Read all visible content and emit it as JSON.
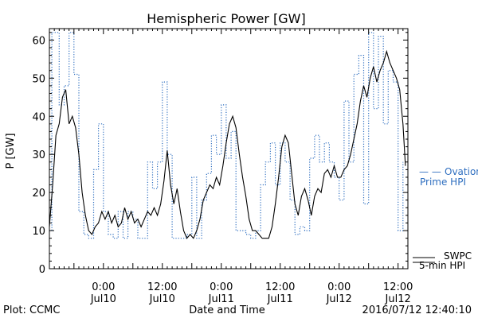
{
  "chart_data": {
    "type": "line",
    "title": "Hemispheric Power [GW]",
    "xlabel": "Date and Time",
    "ylabel": "P [GW]",
    "ylim": [
      0,
      63
    ],
    "yticks": [
      0,
      10,
      20,
      30,
      40,
      50,
      60
    ],
    "xlim": [
      "2016-07-09 13:00",
      "2016-07-12 14:00"
    ],
    "xticks": [
      {
        "at": "2016-07-10 00:00",
        "time": "0:00",
        "date": "Jul10"
      },
      {
        "at": "2016-07-10 12:00",
        "time": "12:00",
        "date": "Jul10"
      },
      {
        "at": "2016-07-11 00:00",
        "time": "0:00",
        "date": "Jul11"
      },
      {
        "at": "2016-07-11 12:00",
        "time": "12:00",
        "date": "Jul11"
      },
      {
        "at": "2016-07-12 00:00",
        "time": "0:00",
        "date": "Jul12"
      },
      {
        "at": "2016-07-12 12:00",
        "time": "12:00",
        "date": "Jul12"
      }
    ],
    "series": [
      {
        "name": "Ovation Prime HPI",
        "legend_marker": "— —",
        "legend_lines": [
          "Ovation",
          "Prime HPI"
        ],
        "color": "#2f6fc0",
        "style": "dotted-step",
        "points": [
          [
            "2016-07-09 13:00",
            10
          ],
          [
            "2016-07-09 13:30",
            62
          ],
          [
            "2016-07-09 15:00",
            43
          ],
          [
            "2016-07-09 16:00",
            48
          ],
          [
            "2016-07-09 17:00",
            62
          ],
          [
            "2016-07-09 18:00",
            51
          ],
          [
            "2016-07-09 19:00",
            15
          ],
          [
            "2016-07-09 20:00",
            9
          ],
          [
            "2016-07-09 21:00",
            8
          ],
          [
            "2016-07-09 22:00",
            26
          ],
          [
            "2016-07-09 23:00",
            38
          ],
          [
            "2016-07-10 00:00",
            15
          ],
          [
            "2016-07-10 01:00",
            9
          ],
          [
            "2016-07-10 02:00",
            8
          ],
          [
            "2016-07-10 03:00",
            15
          ],
          [
            "2016-07-10 04:00",
            8
          ],
          [
            "2016-07-10 05:00",
            15
          ],
          [
            "2016-07-10 06:00",
            13
          ],
          [
            "2016-07-10 07:00",
            8
          ],
          [
            "2016-07-10 09:00",
            28
          ],
          [
            "2016-07-10 10:00",
            21
          ],
          [
            "2016-07-10 11:00",
            28
          ],
          [
            "2016-07-10 12:00",
            49
          ],
          [
            "2016-07-10 13:00",
            30
          ],
          [
            "2016-07-10 14:00",
            8
          ],
          [
            "2016-07-10 17:00",
            9
          ],
          [
            "2016-07-10 18:00",
            24
          ],
          [
            "2016-07-10 19:00",
            8
          ],
          [
            "2016-07-10 20:00",
            18
          ],
          [
            "2016-07-10 21:00",
            25
          ],
          [
            "2016-07-10 22:00",
            35
          ],
          [
            "2016-07-10 23:00",
            30
          ],
          [
            "2016-07-11 00:00",
            43
          ],
          [
            "2016-07-11 01:00",
            29
          ],
          [
            "2016-07-11 02:00",
            36
          ],
          [
            "2016-07-11 03:00",
            10
          ],
          [
            "2016-07-11 04:00",
            10
          ],
          [
            "2016-07-11 05:00",
            9
          ],
          [
            "2016-07-11 06:00",
            8
          ],
          [
            "2016-07-11 07:00",
            10
          ],
          [
            "2016-07-11 08:00",
            22
          ],
          [
            "2016-07-11 09:00",
            28
          ],
          [
            "2016-07-11 10:00",
            33
          ],
          [
            "2016-07-11 11:00",
            22
          ],
          [
            "2016-07-11 12:00",
            33
          ],
          [
            "2016-07-11 13:00",
            28
          ],
          [
            "2016-07-11 14:00",
            18
          ],
          [
            "2016-07-11 15:00",
            9
          ],
          [
            "2016-07-11 16:00",
            11
          ],
          [
            "2016-07-11 17:00",
            10
          ],
          [
            "2016-07-11 18:00",
            29
          ],
          [
            "2016-07-11 19:00",
            35
          ],
          [
            "2016-07-11 20:00",
            28
          ],
          [
            "2016-07-11 21:00",
            33
          ],
          [
            "2016-07-11 22:00",
            28
          ],
          [
            "2016-07-11 23:00",
            24
          ],
          [
            "2016-07-12 00:00",
            18
          ],
          [
            "2016-07-12 01:00",
            44
          ],
          [
            "2016-07-12 02:00",
            28
          ],
          [
            "2016-07-12 03:00",
            51
          ],
          [
            "2016-07-12 04:00",
            56
          ],
          [
            "2016-07-12 05:00",
            17
          ],
          [
            "2016-07-12 06:00",
            62
          ],
          [
            "2016-07-12 07:00",
            42
          ],
          [
            "2016-07-12 08:00",
            61
          ],
          [
            "2016-07-12 09:00",
            38
          ],
          [
            "2016-07-12 10:00",
            52
          ],
          [
            "2016-07-12 11:00",
            49
          ],
          [
            "2016-07-12 12:00",
            10
          ],
          [
            "2016-07-12 13:00",
            28
          ]
        ]
      },
      {
        "name": "SWPC 5-min HPI",
        "legend_lines": [
          "SWPC",
          "5-min HPI"
        ],
        "color": "#000000",
        "style": "solid",
        "points": [
          [
            "2016-07-09 13:00",
            11
          ],
          [
            "2016-07-09 13:40",
            22
          ],
          [
            "2016-07-09 14:20",
            35
          ],
          [
            "2016-07-09 15:00",
            38
          ],
          [
            "2016-07-09 15:40",
            45
          ],
          [
            "2016-07-09 16:20",
            47
          ],
          [
            "2016-07-09 17:00",
            38
          ],
          [
            "2016-07-09 17:40",
            40
          ],
          [
            "2016-07-09 18:20",
            37
          ],
          [
            "2016-07-09 19:00",
            30
          ],
          [
            "2016-07-09 19:40",
            20
          ],
          [
            "2016-07-09 20:20",
            14
          ],
          [
            "2016-07-09 21:00",
            10
          ],
          [
            "2016-07-09 21:40",
            9
          ],
          [
            "2016-07-09 22:20",
            11
          ],
          [
            "2016-07-09 23:00",
            12
          ],
          [
            "2016-07-09 23:40",
            15
          ],
          [
            "2016-07-10 00:20",
            13
          ],
          [
            "2016-07-10 01:00",
            15
          ],
          [
            "2016-07-10 01:40",
            12
          ],
          [
            "2016-07-10 02:20",
            14
          ],
          [
            "2016-07-10 03:00",
            11
          ],
          [
            "2016-07-10 03:40",
            12
          ],
          [
            "2016-07-10 04:20",
            16
          ],
          [
            "2016-07-10 05:00",
            13
          ],
          [
            "2016-07-10 05:40",
            15
          ],
          [
            "2016-07-10 06:20",
            12
          ],
          [
            "2016-07-10 07:00",
            13
          ],
          [
            "2016-07-10 07:40",
            11
          ],
          [
            "2016-07-10 08:20",
            13
          ],
          [
            "2016-07-10 09:00",
            15
          ],
          [
            "2016-07-10 09:40",
            14
          ],
          [
            "2016-07-10 10:20",
            16
          ],
          [
            "2016-07-10 11:00",
            14
          ],
          [
            "2016-07-10 11:40",
            17
          ],
          [
            "2016-07-10 12:20",
            23
          ],
          [
            "2016-07-10 13:00",
            31
          ],
          [
            "2016-07-10 13:40",
            22
          ],
          [
            "2016-07-10 14:20",
            17
          ],
          [
            "2016-07-10 15:00",
            21
          ],
          [
            "2016-07-10 15:40",
            15
          ],
          [
            "2016-07-10 16:20",
            10
          ],
          [
            "2016-07-10 17:00",
            8
          ],
          [
            "2016-07-10 17:40",
            9
          ],
          [
            "2016-07-10 18:20",
            8
          ],
          [
            "2016-07-10 19:00",
            10
          ],
          [
            "2016-07-10 19:40",
            13
          ],
          [
            "2016-07-10 20:20",
            18
          ],
          [
            "2016-07-10 21:00",
            20
          ],
          [
            "2016-07-10 21:40",
            22
          ],
          [
            "2016-07-10 22:20",
            21
          ],
          [
            "2016-07-10 23:00",
            24
          ],
          [
            "2016-07-10 23:40",
            22
          ],
          [
            "2016-07-11 00:20",
            27
          ],
          [
            "2016-07-11 01:00",
            33
          ],
          [
            "2016-07-11 01:40",
            38
          ],
          [
            "2016-07-11 02:20",
            40
          ],
          [
            "2016-07-11 03:00",
            37
          ],
          [
            "2016-07-11 03:40",
            30
          ],
          [
            "2016-07-11 04:20",
            24
          ],
          [
            "2016-07-11 05:00",
            19
          ],
          [
            "2016-07-11 05:40",
            13
          ],
          [
            "2016-07-11 06:20",
            10
          ],
          [
            "2016-07-11 07:00",
            10
          ],
          [
            "2016-07-11 07:40",
            9
          ],
          [
            "2016-07-11 08:20",
            8
          ],
          [
            "2016-07-11 09:00",
            8
          ],
          [
            "2016-07-11 09:40",
            8
          ],
          [
            "2016-07-11 10:20",
            11
          ],
          [
            "2016-07-11 11:00",
            17
          ],
          [
            "2016-07-11 11:40",
            24
          ],
          [
            "2016-07-11 12:20",
            32
          ],
          [
            "2016-07-11 13:00",
            35
          ],
          [
            "2016-07-11 13:40",
            33
          ],
          [
            "2016-07-11 14:20",
            25
          ],
          [
            "2016-07-11 15:00",
            17
          ],
          [
            "2016-07-11 15:40",
            14
          ],
          [
            "2016-07-11 16:20",
            19
          ],
          [
            "2016-07-11 17:00",
            21
          ],
          [
            "2016-07-11 17:40",
            18
          ],
          [
            "2016-07-11 18:20",
            14
          ],
          [
            "2016-07-11 19:00",
            19
          ],
          [
            "2016-07-11 19:40",
            21
          ],
          [
            "2016-07-11 20:20",
            20
          ],
          [
            "2016-07-11 21:00",
            25
          ],
          [
            "2016-07-11 21:40",
            26
          ],
          [
            "2016-07-11 22:20",
            24
          ],
          [
            "2016-07-11 23:00",
            27
          ],
          [
            "2016-07-11 23:40",
            24
          ],
          [
            "2016-07-12 00:20",
            24
          ],
          [
            "2016-07-12 01:00",
            26
          ],
          [
            "2016-07-12 01:40",
            27
          ],
          [
            "2016-07-12 02:20",
            30
          ],
          [
            "2016-07-12 03:00",
            34
          ],
          [
            "2016-07-12 03:40",
            38
          ],
          [
            "2016-07-12 04:20",
            44
          ],
          [
            "2016-07-12 05:00",
            48
          ],
          [
            "2016-07-12 05:40",
            45
          ],
          [
            "2016-07-12 06:20",
            50
          ],
          [
            "2016-07-12 07:00",
            53
          ],
          [
            "2016-07-12 07:40",
            49
          ],
          [
            "2016-07-12 08:20",
            52
          ],
          [
            "2016-07-12 09:00",
            54
          ],
          [
            "2016-07-12 09:40",
            57
          ],
          [
            "2016-07-12 10:20",
            54
          ],
          [
            "2016-07-12 11:00",
            52
          ],
          [
            "2016-07-12 11:40",
            50
          ],
          [
            "2016-07-12 12:20",
            47
          ],
          [
            "2016-07-12 13:00",
            38
          ],
          [
            "2016-07-12 13:30",
            27
          ]
        ]
      }
    ],
    "legend_placement": "right"
  },
  "footer": {
    "plot_credit": "Plot: CCMC",
    "timestamp": "2016/07/12 12:40:10"
  }
}
